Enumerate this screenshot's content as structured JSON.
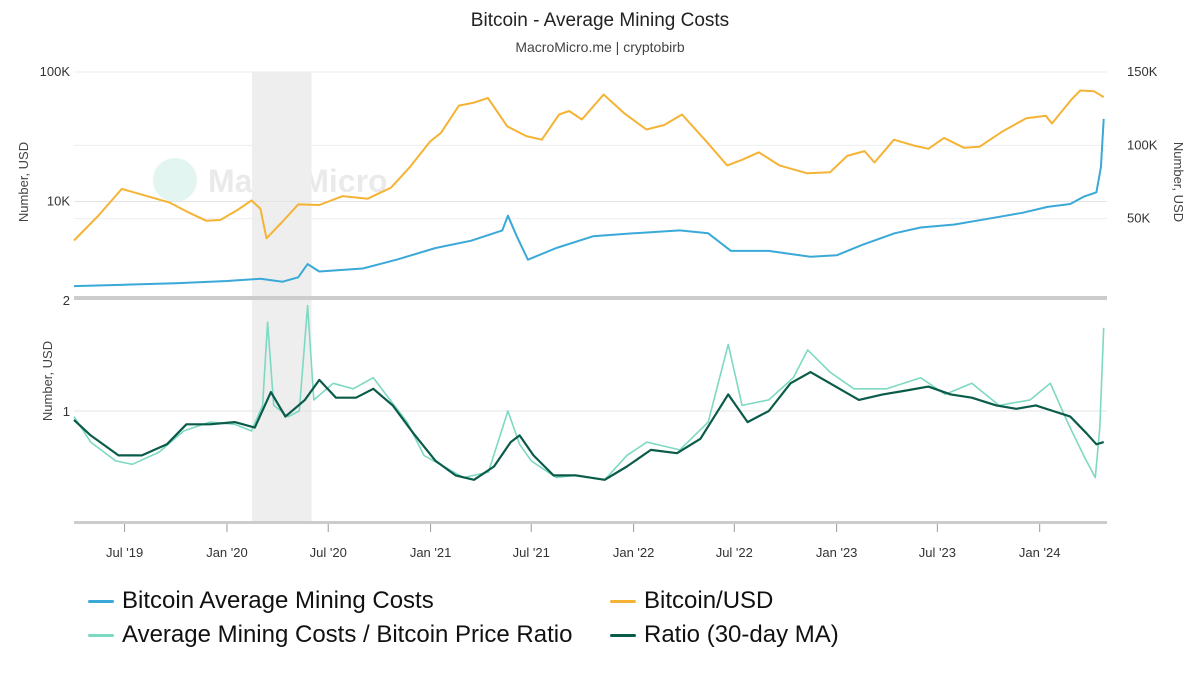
{
  "chart_data": {
    "type": "line",
    "title": "Bitcoin - Average Mining Costs",
    "subtitle": "MacroMicro.me | cryptobirb",
    "watermark": "MacroMicro",
    "shaded_region": {
      "from": "2020-02-15",
      "to": "2020-06-01",
      "color": "#eeeeee"
    },
    "x_ticks": [
      {
        "label": "Jul '19",
        "date": "2019-07-01"
      },
      {
        "label": "Jan '20",
        "date": "2020-01-01"
      },
      {
        "label": "Jul '20",
        "date": "2020-07-01"
      },
      {
        "label": "Jan '21",
        "date": "2021-01-01"
      },
      {
        "label": "Jul '21",
        "date": "2021-07-01"
      },
      {
        "label": "Jan '22",
        "date": "2022-01-01"
      },
      {
        "label": "Jul '22",
        "date": "2022-07-01"
      },
      {
        "label": "Jan '23",
        "date": "2023-01-01"
      },
      {
        "label": "Jul '23",
        "date": "2023-07-01"
      },
      {
        "label": "Jan '24",
        "date": "2024-01-01"
      }
    ],
    "x_range": [
      "2019-04-01",
      "2024-05-01"
    ],
    "top_panel": {
      "left_axis": {
        "label": "Number, USD",
        "scale": "log",
        "range": [
          2000,
          100000
        ],
        "ticks": [
          {
            "label": "100K",
            "value": 100000
          },
          {
            "label": "10K",
            "value": 10000
          }
        ]
      },
      "right_axis": {
        "label": "Number, USD",
        "scale": "linear",
        "range": [
          0,
          150000
        ],
        "ticks": [
          {
            "label": "150K",
            "value": 150000
          },
          {
            "label": "100K",
            "value": 100000
          },
          {
            "label": "50K",
            "value": 50000
          }
        ]
      },
      "series": [
        {
          "name": "Bitcoin/USD",
          "color": "#f5b335",
          "axis": "left",
          "points": [
            [
              "2019-04-01",
              5000
            ],
            [
              "2019-05-15",
              7800
            ],
            [
              "2019-06-26",
              12500
            ],
            [
              "2019-08-10",
              11000
            ],
            [
              "2019-09-20",
              9800
            ],
            [
              "2019-10-25",
              8200
            ],
            [
              "2019-11-25",
              7100
            ],
            [
              "2019-12-20",
              7200
            ],
            [
              "2020-01-20",
              8600
            ],
            [
              "2020-02-14",
              10200
            ],
            [
              "2020-03-01",
              8800
            ],
            [
              "2020-03-12",
              5200
            ],
            [
              "2020-04-10",
              7000
            ],
            [
              "2020-05-08",
              9500
            ],
            [
              "2020-06-15",
              9400
            ],
            [
              "2020-07-27",
              11000
            ],
            [
              "2020-09-10",
              10500
            ],
            [
              "2020-10-22",
              12800
            ],
            [
              "2020-11-25",
              18500
            ],
            [
              "2020-12-31",
              29000
            ],
            [
              "2021-01-20",
              34000
            ],
            [
              "2021-02-21",
              55000
            ],
            [
              "2021-03-20",
              58000
            ],
            [
              "2021-04-14",
              63000
            ],
            [
              "2021-05-19",
              38000
            ],
            [
              "2021-06-22",
              32000
            ],
            [
              "2021-07-20",
              30000
            ],
            [
              "2021-08-20",
              47000
            ],
            [
              "2021-09-07",
              50000
            ],
            [
              "2021-09-30",
              43000
            ],
            [
              "2021-11-08",
              67000
            ],
            [
              "2021-12-15",
              48000
            ],
            [
              "2022-01-24",
              36000
            ],
            [
              "2022-02-25",
              39000
            ],
            [
              "2022-03-29",
              47000
            ],
            [
              "2022-05-12",
              29000
            ],
            [
              "2022-06-18",
              19000
            ],
            [
              "2022-07-15",
              21000
            ],
            [
              "2022-08-14",
              24000
            ],
            [
              "2022-09-20",
              19000
            ],
            [
              "2022-11-09",
              16500
            ],
            [
              "2022-12-20",
              16800
            ],
            [
              "2023-01-20",
              22500
            ],
            [
              "2023-02-20",
              24500
            ],
            [
              "2023-03-10",
              20000
            ],
            [
              "2023-04-14",
              30000
            ],
            [
              "2023-05-20",
              27000
            ],
            [
              "2023-06-15",
              25500
            ],
            [
              "2023-07-13",
              31000
            ],
            [
              "2023-08-18",
              26000
            ],
            [
              "2023-09-15",
              26500
            ],
            [
              "2023-10-25",
              34500
            ],
            [
              "2023-12-08",
              44000
            ],
            [
              "2024-01-12",
              46000
            ],
            [
              "2024-01-23",
              40000
            ],
            [
              "2024-02-28",
              62000
            ],
            [
              "2024-03-14",
              72000
            ],
            [
              "2024-04-08",
              71000
            ],
            [
              "2024-04-25",
              64000
            ]
          ]
        },
        {
          "name": "Bitcoin Average Mining Costs",
          "color": "#3aa9d8",
          "axis": "right",
          "points": [
            [
              "2019-04-01",
              4000
            ],
            [
              "2019-07-01",
              5000
            ],
            [
              "2019-10-01",
              6000
            ],
            [
              "2020-01-01",
              7500
            ],
            [
              "2020-03-01",
              9000
            ],
            [
              "2020-04-10",
              7000
            ],
            [
              "2020-05-08",
              10000
            ],
            [
              "2020-05-25",
              19000
            ],
            [
              "2020-06-15",
              14000
            ],
            [
              "2020-09-01",
              16000
            ],
            [
              "2020-11-01",
              22000
            ],
            [
              "2021-01-10",
              30000
            ],
            [
              "2021-03-15",
              35000
            ],
            [
              "2021-05-10",
              42000
            ],
            [
              "2021-05-20",
              52000
            ],
            [
              "2021-06-05",
              38000
            ],
            [
              "2021-06-25",
              22000
            ],
            [
              "2021-08-15",
              30000
            ],
            [
              "2021-10-20",
              38000
            ],
            [
              "2022-01-01",
              40000
            ],
            [
              "2022-03-25",
              42000
            ],
            [
              "2022-05-15",
              40000
            ],
            [
              "2022-06-25",
              28000
            ],
            [
              "2022-09-01",
              28000
            ],
            [
              "2022-11-15",
              24000
            ],
            [
              "2023-01-01",
              25000
            ],
            [
              "2023-02-15",
              32000
            ],
            [
              "2023-04-15",
              40000
            ],
            [
              "2023-06-01",
              44000
            ],
            [
              "2023-08-01",
              46000
            ],
            [
              "2023-10-01",
              50000
            ],
            [
              "2023-12-01",
              54000
            ],
            [
              "2024-01-15",
              58000
            ],
            [
              "2024-02-25",
              60000
            ],
            [
              "2024-03-20",
              65000
            ],
            [
              "2024-04-12",
              68000
            ],
            [
              "2024-04-20",
              85000
            ],
            [
              "2024-04-25",
              118000
            ]
          ]
        }
      ]
    },
    "bottom_panel": {
      "left_axis": {
        "label": "Number, USD",
        "scale": "linear",
        "range": [
          0,
          2
        ],
        "ticks": [
          {
            "label": "2",
            "value": 2
          },
          {
            "label": "1",
            "value": 1
          }
        ]
      },
      "series": [
        {
          "name": "Average Mining Costs / Bitcoin Price Ratio",
          "color": "#7dd9c2",
          "points": [
            [
              "2019-04-01",
              0.95
            ],
            [
              "2019-05-01",
              0.72
            ],
            [
              "2019-06-15",
              0.55
            ],
            [
              "2019-07-15",
              0.52
            ],
            [
              "2019-09-01",
              0.63
            ],
            [
              "2019-10-15",
              0.82
            ],
            [
              "2019-12-01",
              0.9
            ],
            [
              "2020-01-15",
              0.88
            ],
            [
              "2020-02-14",
              0.82
            ],
            [
              "2020-03-05",
              1.05
            ],
            [
              "2020-03-14",
              1.8
            ],
            [
              "2020-03-25",
              1.05
            ],
            [
              "2020-04-20",
              0.95
            ],
            [
              "2020-05-10",
              1.0
            ],
            [
              "2020-05-25",
              1.95
            ],
            [
              "2020-06-05",
              1.1
            ],
            [
              "2020-07-10",
              1.25
            ],
            [
              "2020-08-15",
              1.2
            ],
            [
              "2020-09-20",
              1.3
            ],
            [
              "2020-10-20",
              1.1
            ],
            [
              "2020-11-20",
              0.9
            ],
            [
              "2020-12-20",
              0.6
            ],
            [
              "2021-02-01",
              0.48
            ],
            [
              "2021-03-01",
              0.4
            ],
            [
              "2021-04-15",
              0.45
            ],
            [
              "2021-05-20",
              1.0
            ],
            [
              "2021-06-10",
              0.7
            ],
            [
              "2021-07-01",
              0.55
            ],
            [
              "2021-08-15",
              0.4
            ],
            [
              "2021-09-15",
              0.42
            ],
            [
              "2021-11-10",
              0.38
            ],
            [
              "2021-12-20",
              0.6
            ],
            [
              "2022-01-25",
              0.72
            ],
            [
              "2022-03-25",
              0.65
            ],
            [
              "2022-05-15",
              0.9
            ],
            [
              "2022-06-20",
              1.6
            ],
            [
              "2022-07-15",
              1.05
            ],
            [
              "2022-09-01",
              1.1
            ],
            [
              "2022-10-15",
              1.3
            ],
            [
              "2022-11-10",
              1.55
            ],
            [
              "2022-12-20",
              1.35
            ],
            [
              "2023-02-01",
              1.2
            ],
            [
              "2023-04-01",
              1.2
            ],
            [
              "2023-06-01",
              1.3
            ],
            [
              "2023-07-15",
              1.15
            ],
            [
              "2023-09-01",
              1.25
            ],
            [
              "2023-10-20",
              1.05
            ],
            [
              "2023-12-15",
              1.1
            ],
            [
              "2024-01-20",
              1.25
            ],
            [
              "2024-02-20",
              0.9
            ],
            [
              "2024-03-20",
              0.6
            ],
            [
              "2024-04-10",
              0.4
            ],
            [
              "2024-04-18",
              0.85
            ],
            [
              "2024-04-25",
              1.75
            ]
          ]
        },
        {
          "name": "Ratio (30-day MA)",
          "color": "#0a5b49",
          "points": [
            [
              "2019-04-01",
              0.92
            ],
            [
              "2019-05-01",
              0.78
            ],
            [
              "2019-06-20",
              0.6
            ],
            [
              "2019-08-01",
              0.6
            ],
            [
              "2019-09-15",
              0.7
            ],
            [
              "2019-10-20",
              0.88
            ],
            [
              "2019-12-01",
              0.88
            ],
            [
              "2020-01-15",
              0.9
            ],
            [
              "2020-02-20",
              0.85
            ],
            [
              "2020-03-20",
              1.17
            ],
            [
              "2020-04-15",
              0.95
            ],
            [
              "2020-05-20",
              1.1
            ],
            [
              "2020-06-15",
              1.28
            ],
            [
              "2020-07-15",
              1.12
            ],
            [
              "2020-08-20",
              1.12
            ],
            [
              "2020-09-20",
              1.2
            ],
            [
              "2020-10-25",
              1.05
            ],
            [
              "2020-12-01",
              0.8
            ],
            [
              "2021-01-10",
              0.55
            ],
            [
              "2021-02-15",
              0.42
            ],
            [
              "2021-03-20",
              0.38
            ],
            [
              "2021-04-25",
              0.5
            ],
            [
              "2021-05-25",
              0.72
            ],
            [
              "2021-06-10",
              0.78
            ],
            [
              "2021-07-05",
              0.6
            ],
            [
              "2021-08-10",
              0.42
            ],
            [
              "2021-09-20",
              0.42
            ],
            [
              "2021-11-10",
              0.38
            ],
            [
              "2021-12-20",
              0.5
            ],
            [
              "2022-02-01",
              0.65
            ],
            [
              "2022-03-20",
              0.62
            ],
            [
              "2022-05-01",
              0.75
            ],
            [
              "2022-06-20",
              1.15
            ],
            [
              "2022-07-25",
              0.9
            ],
            [
              "2022-09-01",
              1.0
            ],
            [
              "2022-10-10",
              1.25
            ],
            [
              "2022-11-15",
              1.35
            ],
            [
              "2022-12-20",
              1.25
            ],
            [
              "2023-02-10",
              1.1
            ],
            [
              "2023-03-25",
              1.15
            ],
            [
              "2023-05-01",
              1.18
            ],
            [
              "2023-06-15",
              1.22
            ],
            [
              "2023-07-25",
              1.15
            ],
            [
              "2023-09-01",
              1.12
            ],
            [
              "2023-10-15",
              1.05
            ],
            [
              "2023-11-20",
              1.02
            ],
            [
              "2023-12-25",
              1.05
            ],
            [
              "2024-01-25",
              1.0
            ],
            [
              "2024-02-25",
              0.95
            ],
            [
              "2024-03-25",
              0.8
            ],
            [
              "2024-04-12",
              0.7
            ],
            [
              "2024-04-25",
              0.72
            ]
          ]
        }
      ]
    },
    "legend": [
      {
        "label": "Bitcoin Average Mining Costs",
        "color": "#3aa9d8"
      },
      {
        "label": "Bitcoin/USD",
        "color": "#f5b335"
      },
      {
        "label": "Average Mining Costs / Bitcoin Price Ratio",
        "color": "#7dd9c2"
      },
      {
        "label": "Ratio (30-day MA)",
        "color": "#0a5b49"
      }
    ]
  }
}
